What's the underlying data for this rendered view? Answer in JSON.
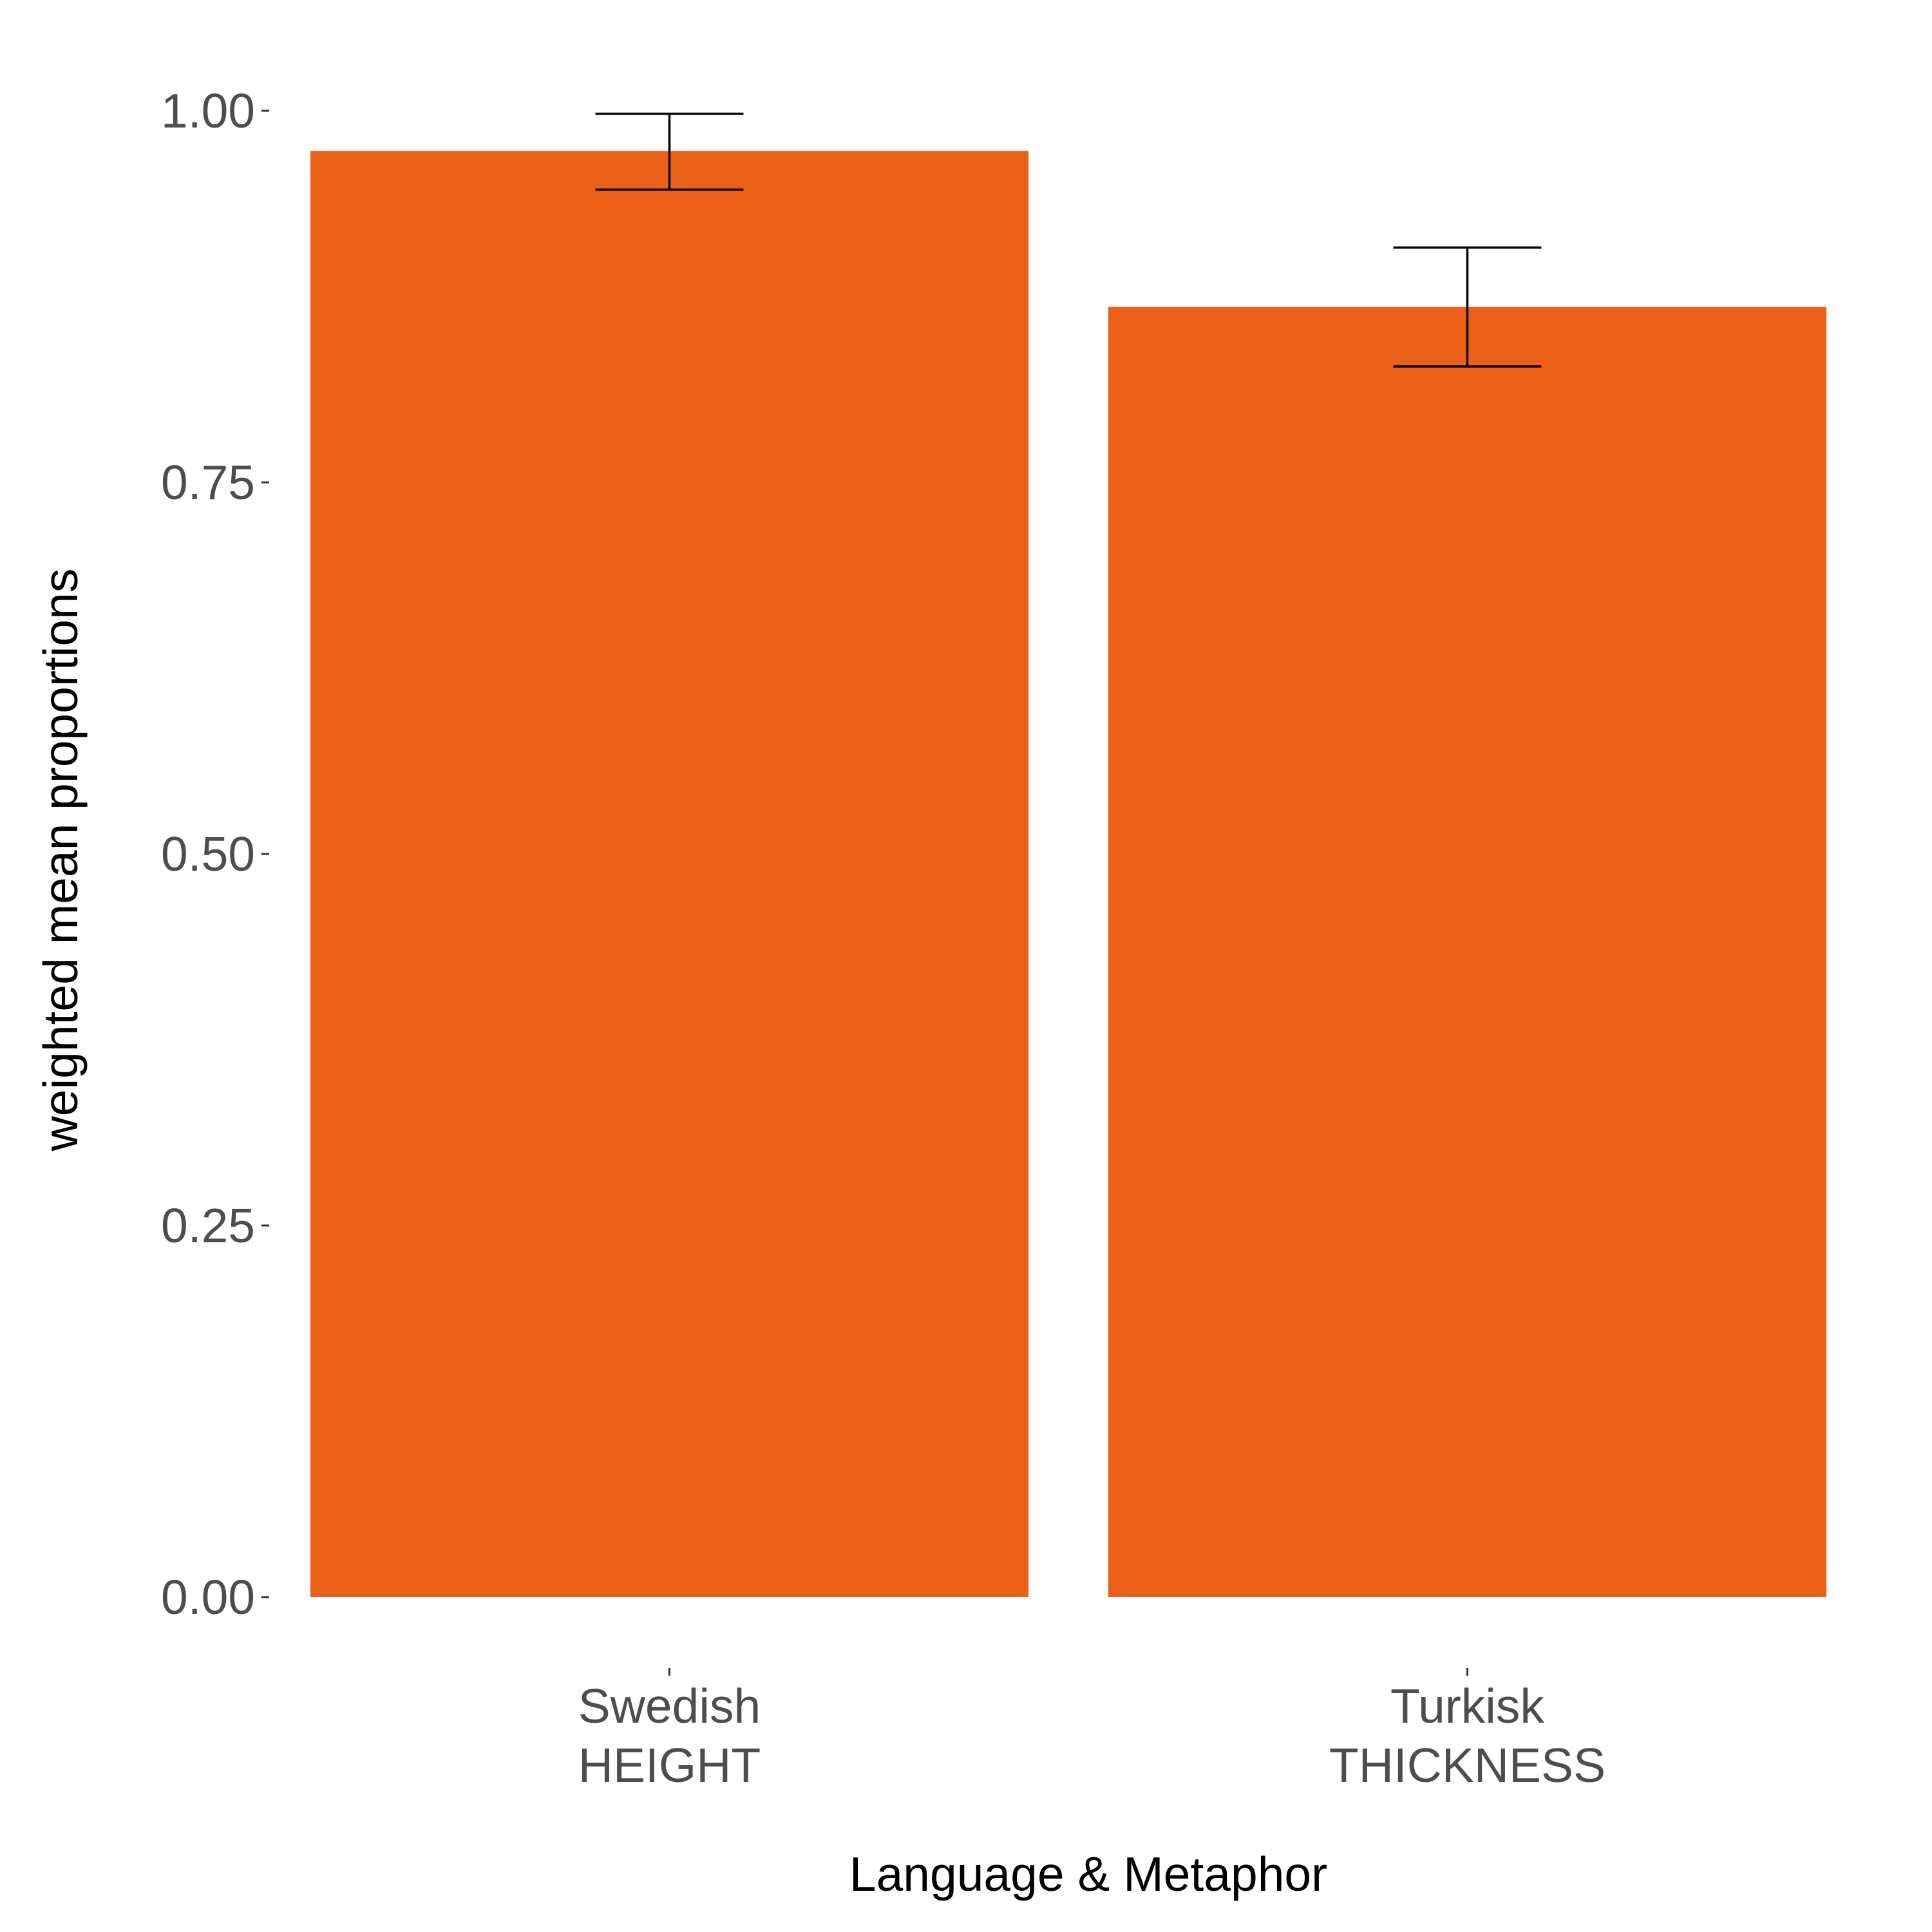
{
  "chart_data": {
    "type": "bar",
    "categories": [
      [
        "Swedish",
        "HEIGHT"
      ],
      [
        "Turkisk",
        "THICKNESS"
      ]
    ],
    "values": [
      0.973,
      0.868
    ],
    "error_low": [
      0.947,
      0.828
    ],
    "error_high": [
      0.998,
      0.908
    ],
    "xlabel": "Language & Metaphor",
    "ylabel": "weighted mean proportions",
    "ylim": [
      0,
      1
    ],
    "yticks": [
      0.0,
      0.25,
      0.5,
      0.75,
      1.0
    ],
    "ytick_labels": [
      "0.00",
      "0.25",
      "0.50",
      "0.75",
      "1.00"
    ],
    "grid": false,
    "legend": "none",
    "bar_color": "#ec6119",
    "errorbar_color": "#000000"
  }
}
